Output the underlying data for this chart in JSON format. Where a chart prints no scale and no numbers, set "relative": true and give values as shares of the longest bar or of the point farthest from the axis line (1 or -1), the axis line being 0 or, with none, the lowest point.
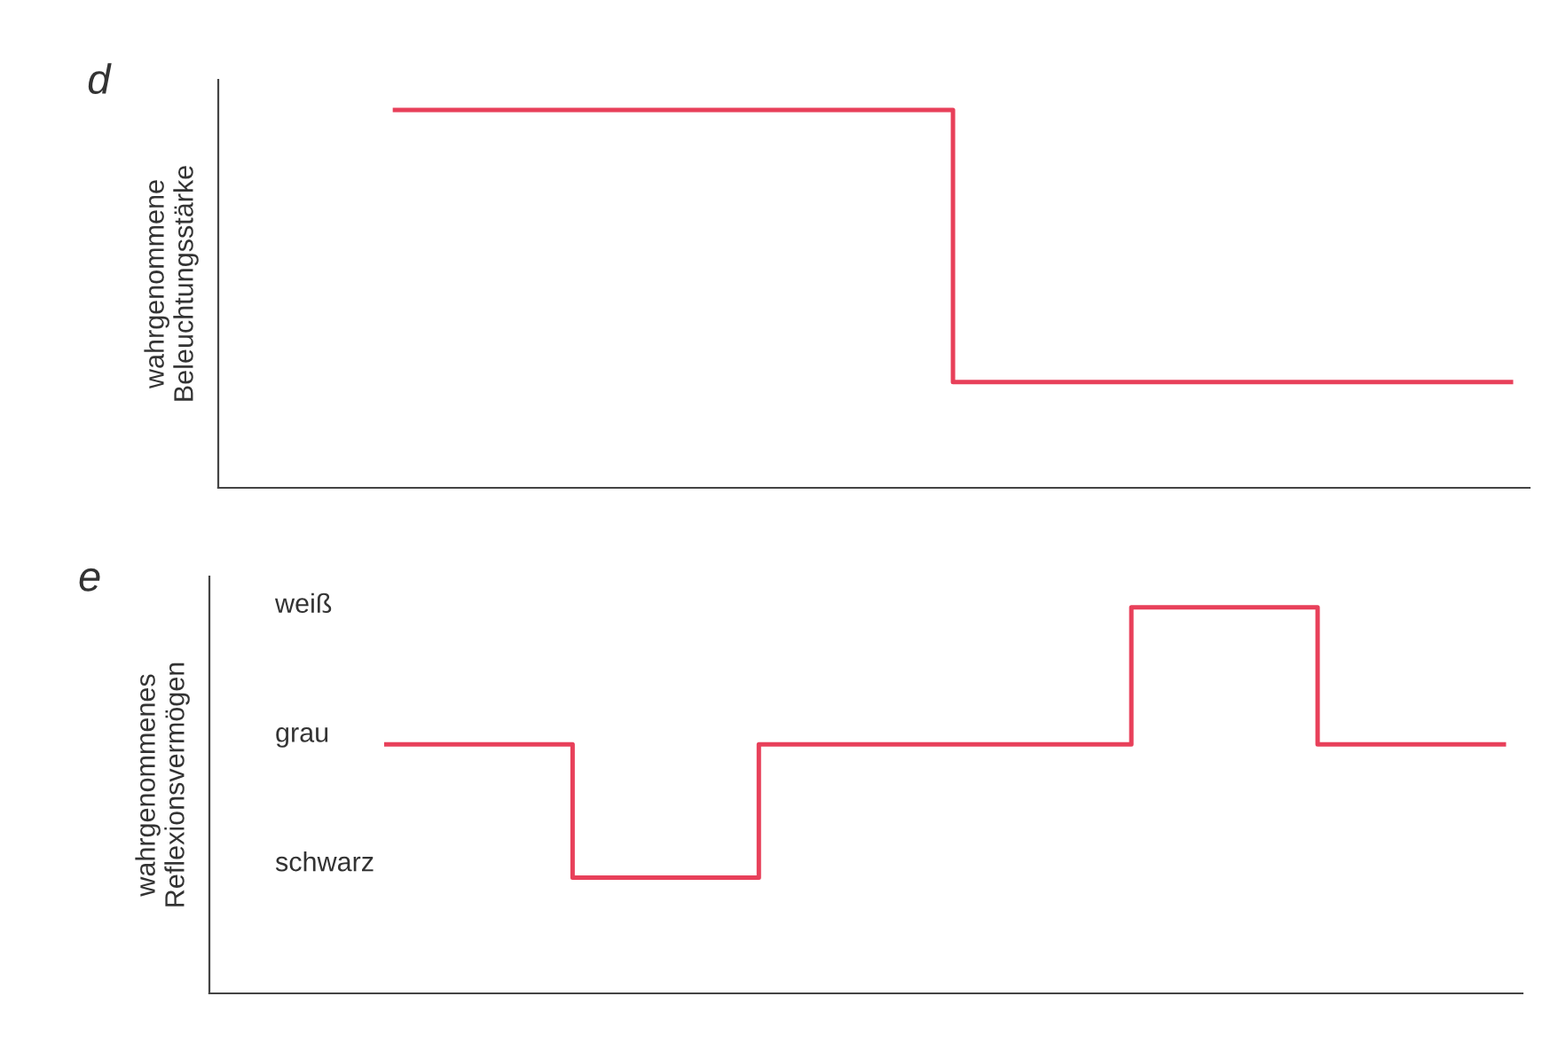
{
  "chart_data": [
    {
      "type": "step",
      "title": "d",
      "ylabel": "wahrgenommene\nBeleuchtungsstärke",
      "relative": true,
      "grid": false,
      "legend": false,
      "categories": [
        null,
        null,
        null,
        null,
        null,
        null,
        null
      ],
      "series": [
        {
          "color": "#e8405a",
          "values": [
            1,
            1,
            1,
            0.28,
            0.28,
            0.28,
            0.28
          ]
        }
      ]
    },
    {
      "type": "step",
      "title": "e",
      "ylabel": "wahrgenommenes\nReflexionsvermögen",
      "grid": false,
      "legend": false,
      "categories": [
        null,
        null,
        null,
        null,
        null,
        null,
        null
      ],
      "relative": true,
      "annotations": [
        "weiß",
        "grau",
        "schwarz"
      ],
      "series": [
        {
          "color": "#e8405a",
          "values": [
            0.645,
            0.3,
            0.645,
            0.645,
            1,
            0.645,
            0.645
          ]
        }
      ]
    }
  ]
}
